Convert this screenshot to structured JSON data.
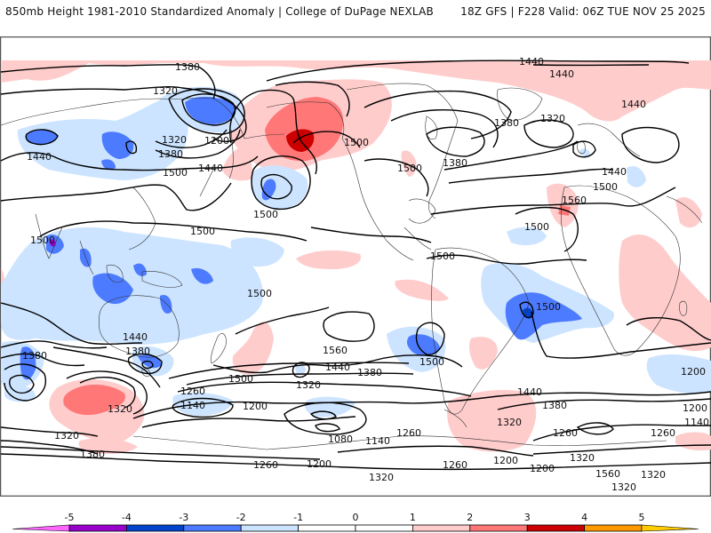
{
  "header": {
    "title": "850mb Height 1981-2010 Standardized Anomaly | College of DuPage NEXLAB",
    "run_info": "18Z GFS | F228 Valid: 06Z TUE NOV 25 2025"
  },
  "colors": {
    "neg5": "#ff66ff",
    "neg4": "#9900cc",
    "neg3": "#0044cc",
    "neg2": "#4d7bff",
    "neg1": "#cce4ff",
    "zero": "#ffffff",
    "pos1": "#ffcccc",
    "pos2": "#ff7777",
    "pos3": "#cc0000",
    "pos4": "#ff9900",
    "pos5": "#ffcc00",
    "contour": "#000000",
    "coast": "#333333"
  },
  "colorbar": {
    "ticks": [
      "-5",
      "-4",
      "-3",
      "-2",
      "-1",
      "0",
      "1",
      "2",
      "3",
      "4",
      "5"
    ]
  },
  "contour_labels": [
    {
      "id": "c1",
      "text": "1380"
    },
    {
      "id": "c2",
      "text": "1440"
    },
    {
      "id": "c3",
      "text": "1440"
    },
    {
      "id": "c4",
      "text": "1320"
    },
    {
      "id": "c5",
      "text": "1200"
    },
    {
      "id": "c6",
      "text": "1320"
    },
    {
      "id": "c7",
      "text": "1380"
    },
    {
      "id": "c8",
      "text": "1440"
    },
    {
      "id": "c9",
      "text": "1500"
    },
    {
      "id": "c10",
      "text": "1440"
    },
    {
      "id": "c11",
      "text": "1500"
    },
    {
      "id": "c12",
      "text": "1500"
    },
    {
      "id": "c13",
      "text": "1500"
    },
    {
      "id": "c14",
      "text": "1380"
    },
    {
      "id": "c15",
      "text": "1380"
    },
    {
      "id": "c16",
      "text": "1320"
    },
    {
      "id": "c17",
      "text": "1440"
    },
    {
      "id": "c18",
      "text": "1440"
    },
    {
      "id": "c19",
      "text": "1500"
    },
    {
      "id": "c20",
      "text": "1560"
    },
    {
      "id": "c21",
      "text": "1500"
    },
    {
      "id": "c22",
      "text": "1500"
    },
    {
      "id": "c23",
      "text": "1500"
    },
    {
      "id": "c24",
      "text": "1500"
    },
    {
      "id": "c25",
      "text": "1500"
    },
    {
      "id": "c26",
      "text": "1500"
    },
    {
      "id": "c27",
      "text": "1440"
    },
    {
      "id": "c28",
      "text": "1380"
    },
    {
      "id": "c29",
      "text": "1380"
    },
    {
      "id": "c30",
      "text": "1500"
    },
    {
      "id": "c31",
      "text": "1560"
    },
    {
      "id": "c32",
      "text": "1500"
    },
    {
      "id": "c33",
      "text": "1440"
    },
    {
      "id": "c34",
      "text": "1380"
    },
    {
      "id": "c35",
      "text": "1320"
    },
    {
      "id": "c36",
      "text": "1260"
    },
    {
      "id": "c37",
      "text": "1140"
    },
    {
      "id": "c38",
      "text": "1200"
    },
    {
      "id": "c39",
      "text": "1320"
    },
    {
      "id": "c40",
      "text": "1320"
    },
    {
      "id": "c41",
      "text": "1380"
    },
    {
      "id": "c42",
      "text": "1260"
    },
    {
      "id": "c43",
      "text": "1080"
    },
    {
      "id": "c44",
      "text": "1140"
    },
    {
      "id": "c45",
      "text": "1200"
    },
    {
      "id": "c46",
      "text": "1260"
    },
    {
      "id": "c47",
      "text": "1320"
    },
    {
      "id": "c48",
      "text": "1260"
    },
    {
      "id": "c49",
      "text": "1200"
    },
    {
      "id": "c50",
      "text": "1440"
    },
    {
      "id": "c51",
      "text": "1380"
    },
    {
      "id": "c52",
      "text": "1320"
    },
    {
      "id": "c53",
      "text": "1260"
    },
    {
      "id": "c54",
      "text": "1200"
    },
    {
      "id": "c55",
      "text": "1320"
    },
    {
      "id": "c56",
      "text": "1320"
    },
    {
      "id": "c57",
      "text": "1200"
    },
    {
      "id": "c58",
      "text": "1140"
    },
    {
      "id": "c59",
      "text": "1260"
    },
    {
      "id": "c60",
      "text": "1320"
    },
    {
      "id": "c61",
      "text": "1560"
    },
    {
      "id": "c62",
      "text": "1200"
    }
  ]
}
